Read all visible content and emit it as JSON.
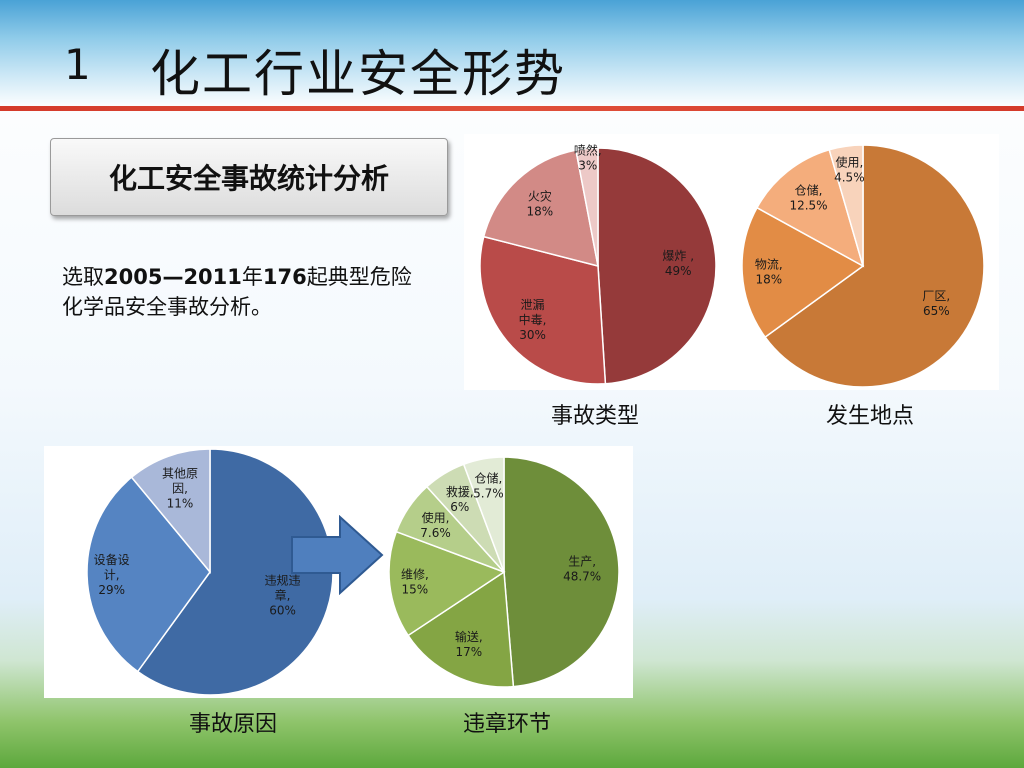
{
  "slide": {
    "number": "1",
    "title": "化工行业安全形势",
    "section_title": "化工安全事故统计分析",
    "desc_prefix": "选取",
    "desc_years": "2005—2011",
    "desc_mid": "年",
    "desc_count": "176",
    "desc_suffix": "起典型危险化学品安全事故分析。"
  },
  "chart_data": [
    {
      "type": "pie",
      "caption": "事故类型",
      "slices": [
        {
          "label": "爆炸 ,",
          "value": 49,
          "value_text": "49%",
          "color": "#953a3a"
        },
        {
          "label": "泄漏|中毒,",
          "value": 30,
          "value_text": "30%",
          "color": "#b94b49"
        },
        {
          "label": "火灾",
          "value": 18,
          "value_text": "18%",
          "color": "#d28a86"
        },
        {
          "label": "喷然,",
          "value": 3,
          "value_text": "3%",
          "color": "#edc9c7"
        }
      ]
    },
    {
      "type": "pie",
      "caption": "发生地点",
      "slices": [
        {
          "label": "厂区,",
          "value": 65,
          "value_text": "65%",
          "color": "#c87937"
        },
        {
          "label": "物流,",
          "value": 18,
          "value_text": "18%",
          "color": "#e28c45"
        },
        {
          "label": "仓储,",
          "value": 12.5,
          "value_text": "12.5%",
          "color": "#f4ad7c"
        },
        {
          "label": "使用,",
          "value": 4.5,
          "value_text": "4.5%",
          "color": "#f8d3bb"
        }
      ]
    },
    {
      "type": "pie",
      "caption": "事故原因",
      "slices": [
        {
          "label": "违规违|章,",
          "value": 60,
          "value_text": "60%",
          "color": "#3f6aa4"
        },
        {
          "label": "设备设|计,",
          "value": 29,
          "value_text": "29%",
          "color": "#5584c2"
        },
        {
          "label": "其他原|因,",
          "value": 11,
          "value_text": "11%",
          "color": "#a9b8d9"
        }
      ]
    },
    {
      "type": "pie",
      "caption": "违章环节",
      "slices": [
        {
          "label": "生产,",
          "value": 48.7,
          "value_text": "48.7%",
          "color": "#6e8e3a"
        },
        {
          "label": "输送,",
          "value": 17,
          "value_text": "17%",
          "color": "#84a544"
        },
        {
          "label": "维修,",
          "value": 15,
          "value_text": "15%",
          "color": "#9aba5c"
        },
        {
          "label": "使用,",
          "value": 7.6,
          "value_text": "7.6%",
          "color": "#b5ce8a"
        },
        {
          "label": "救援,",
          "value": 6,
          "value_text": "6%",
          "color": "#cddcb4"
        },
        {
          "label": "仓储,",
          "value": 5.7,
          "value_text": "5.7%",
          "color": "#e2ebd6"
        }
      ]
    }
  ]
}
